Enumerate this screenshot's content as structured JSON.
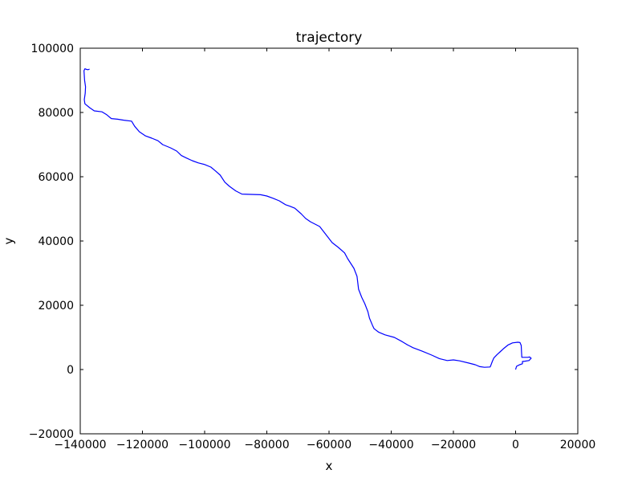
{
  "chart_data": {
    "type": "line",
    "title": "trajectory",
    "xlabel": "x",
    "ylabel": "y",
    "xlim": [
      -140000,
      20000
    ],
    "ylim": [
      -20000,
      100000
    ],
    "xticks": [
      -140000,
      -120000,
      -100000,
      -80000,
      -60000,
      -40000,
      -20000,
      0,
      20000
    ],
    "yticks": [
      -20000,
      0,
      20000,
      40000,
      60000,
      80000,
      100000
    ],
    "xtick_labels": [
      "−140000",
      "−120000",
      "−100000",
      "−80000",
      "−60000",
      "−40000",
      "−20000",
      "0",
      "20000"
    ],
    "ytick_labels": [
      "−20000",
      "0",
      "20000",
      "40000",
      "60000",
      "80000",
      "100000"
    ],
    "grid": false,
    "series": [
      {
        "color": "#0000ff",
        "points": [
          [
            0,
            0
          ],
          [
            300,
            1000
          ],
          [
            700,
            1200
          ],
          [
            1300,
            1500
          ],
          [
            2200,
            1800
          ],
          [
            2200,
            2500
          ],
          [
            3000,
            2600
          ],
          [
            4300,
            2800
          ],
          [
            5000,
            3500
          ],
          [
            4500,
            3900
          ],
          [
            3900,
            3800
          ],
          [
            2900,
            3800
          ],
          [
            2000,
            3800
          ],
          [
            1900,
            5500
          ],
          [
            1800,
            7500
          ],
          [
            1400,
            8400
          ],
          [
            700,
            8500
          ],
          [
            -1000,
            8300
          ],
          [
            -2500,
            7600
          ],
          [
            -4000,
            6400
          ],
          [
            -5000,
            5500
          ],
          [
            -6000,
            4600
          ],
          [
            -7000,
            3600
          ],
          [
            -7500,
            2500
          ],
          [
            -8000,
            1200
          ],
          [
            -8200,
            800
          ],
          [
            -10000,
            700
          ],
          [
            -11500,
            900
          ],
          [
            -13000,
            1500
          ],
          [
            -15000,
            2000
          ],
          [
            -18000,
            2700
          ],
          [
            -20000,
            3000
          ],
          [
            -22000,
            2800
          ],
          [
            -24500,
            3400
          ],
          [
            -27000,
            4500
          ],
          [
            -30000,
            5700
          ],
          [
            -33000,
            6800
          ],
          [
            -35000,
            7800
          ],
          [
            -36500,
            8700
          ],
          [
            -39000,
            10000
          ],
          [
            -42000,
            10800
          ],
          [
            -44000,
            11600
          ],
          [
            -45500,
            12700
          ],
          [
            -46000,
            13700
          ],
          [
            -47000,
            16000
          ],
          [
            -47500,
            18000
          ],
          [
            -48500,
            20500
          ],
          [
            -49500,
            22500
          ],
          [
            -50500,
            25000
          ],
          [
            -51000,
            29000
          ],
          [
            -52000,
            31500
          ],
          [
            -53000,
            33000
          ],
          [
            -54000,
            34500
          ],
          [
            -55000,
            36300
          ],
          [
            -57000,
            38000
          ],
          [
            -59000,
            39500
          ],
          [
            -61000,
            42000
          ],
          [
            -63000,
            44500
          ],
          [
            -65000,
            45500
          ],
          [
            -66000,
            46000
          ],
          [
            -67500,
            47000
          ],
          [
            -69000,
            48500
          ],
          [
            -71000,
            50200
          ],
          [
            -72500,
            50800
          ],
          [
            -74000,
            51300
          ],
          [
            -76000,
            52500
          ],
          [
            -78000,
            53300
          ],
          [
            -80000,
            54000
          ],
          [
            -82000,
            54400
          ],
          [
            -85000,
            54500
          ],
          [
            -88000,
            54600
          ],
          [
            -90000,
            55600
          ],
          [
            -92000,
            57000
          ],
          [
            -93500,
            58300
          ],
          [
            -95000,
            60500
          ],
          [
            -96500,
            61800
          ],
          [
            -98000,
            63000
          ],
          [
            -100000,
            63800
          ],
          [
            -102000,
            64300
          ],
          [
            -104000,
            65000
          ],
          [
            -106000,
            65900
          ],
          [
            -107500,
            66600
          ],
          [
            -109000,
            68000
          ],
          [
            -111000,
            69000
          ],
          [
            -113500,
            70000
          ],
          [
            -115000,
            71200
          ],
          [
            -117000,
            72000
          ],
          [
            -119000,
            72700
          ],
          [
            -121000,
            74000
          ],
          [
            -122500,
            75700
          ],
          [
            -123500,
            77300
          ],
          [
            -126000,
            77600
          ],
          [
            -128000,
            77900
          ],
          [
            -130000,
            78100
          ],
          [
            -131500,
            79300
          ],
          [
            -133000,
            80200
          ],
          [
            -135500,
            80500
          ],
          [
            -137000,
            81500
          ],
          [
            -138500,
            82700
          ],
          [
            -138700,
            84000
          ],
          [
            -138400,
            86000
          ],
          [
            -138300,
            88000
          ],
          [
            -138600,
            90000
          ],
          [
            -138800,
            93000
          ],
          [
            -138500,
            93600
          ],
          [
            -138000,
            93400
          ],
          [
            -137500,
            93300
          ],
          [
            -137000,
            93500
          ]
        ]
      }
    ]
  }
}
